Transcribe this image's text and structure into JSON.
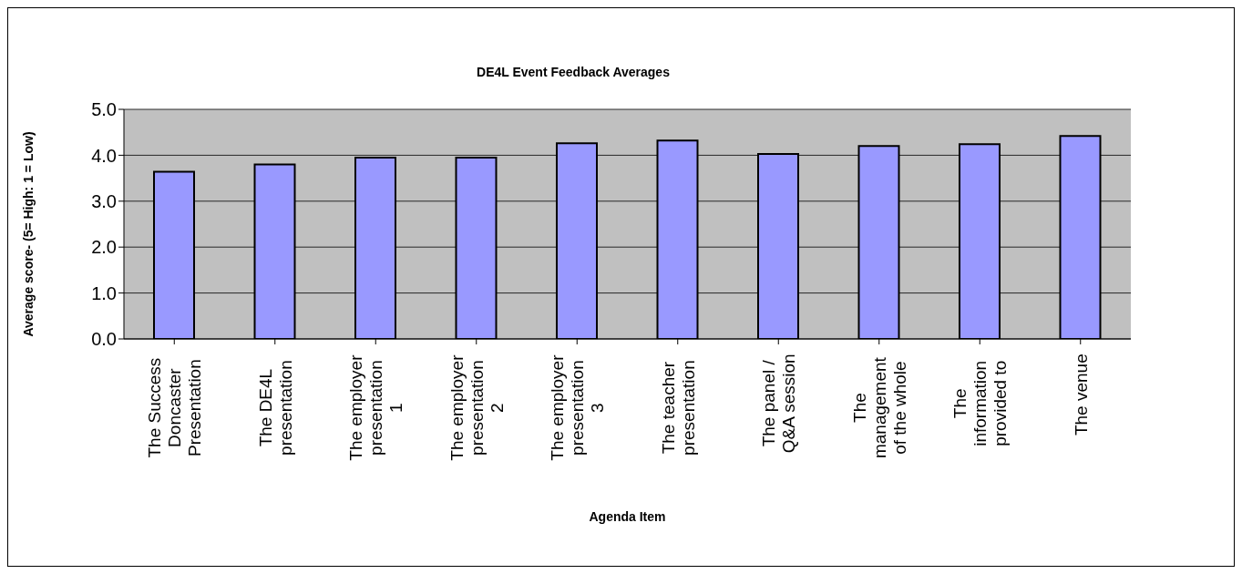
{
  "chart_data": {
    "type": "bar",
    "title": "DE4L Event Feedback Averages",
    "xlabel": "Agenda Item",
    "ylabel": "Average score- (5= High: 1 = Low)",
    "categories": [
      "The Success\nDoncaster\nPresentation",
      "The DE4L\npresentation",
      "The employer\npresentation\n1",
      "The employer\npresentation\n2",
      "The employer\npresentation\n3",
      "The teacher\npresentation",
      "The panel /\nQ&A session",
      "The\nmanagement\nof the whole",
      "The\ninformation\nprovided to",
      "The venue"
    ],
    "values": [
      3.64,
      3.8,
      3.95,
      3.95,
      4.26,
      4.32,
      4.03,
      4.2,
      4.24,
      4.42
    ],
    "color": "#9999ff",
    "ylim": [
      0,
      5
    ],
    "yticks": [
      {
        "value": 0,
        "label": "0.0"
      },
      {
        "value": 1,
        "label": "1.0"
      },
      {
        "value": 2,
        "label": "2.0"
      },
      {
        "value": 3,
        "label": "3.0"
      },
      {
        "value": 4,
        "label": "4.0"
      },
      {
        "value": 5,
        "label": "5.0"
      }
    ],
    "grid": "y"
  }
}
